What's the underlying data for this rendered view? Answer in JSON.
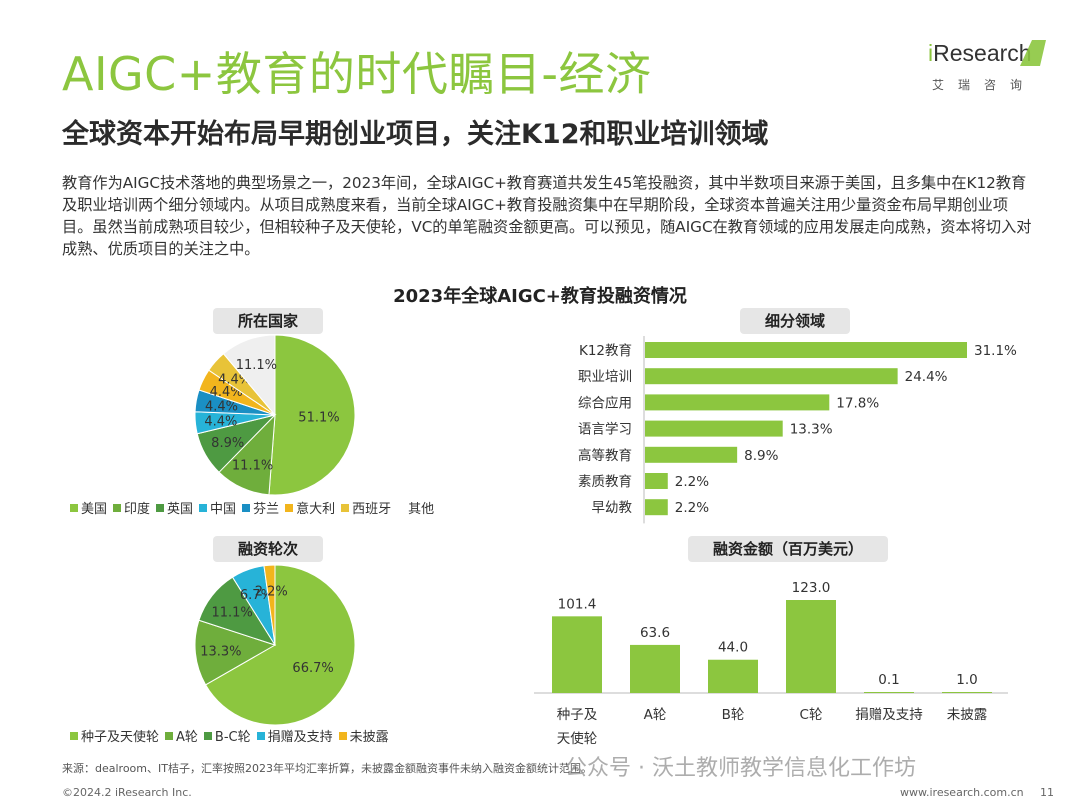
{
  "header": {
    "title": "AIGC+教育的时代瞩目-经济",
    "subtitle": "全球资本开始布局早期创业项目，关注K12和职业培训领域",
    "logo_word_prefix": "i",
    "logo_word_rest": "Research",
    "logo_cn": "艾瑞咨询"
  },
  "intro": "教育作为AIGC技术落地的典型场景之一，2023年间，全球AIGC+教育赛道共发生45笔投融资，其中半数项目来源于美国，且多集中在K12教育及职业培训两个细分领域内。从项目成熟度来看，当前全球AIGC+教育投融资集中在早期阶段，全球资本普遍关注用少量资金布局早期创业项目。虽然当前成熟项目较少，但相较种子及天使轮，VC的单笔融资金额更高。可以预见，随AIGC在教育领域的应用发展走向成熟，资本将切入对成熟、优质项目的关注之中。",
  "chart_title": "2023年全球AIGC+教育投融资情况",
  "colors": {
    "accent": "#8cc63f",
    "bar": "#8cc63f",
    "grey_label": "#e6e6e6"
  },
  "chart_data": [
    {
      "type": "pie",
      "title": "所在国家",
      "unit": "%",
      "categories": [
        "美国",
        "印度",
        "英国",
        "中国",
        "芬兰",
        "意大利",
        "西班牙",
        "其他"
      ],
      "values": [
        51.1,
        11.1,
        8.9,
        4.4,
        4.4,
        4.4,
        4.4,
        11.1
      ],
      "labels": [
        "51.1%",
        "11.1%",
        "8.9%",
        "4.4%",
        "4.4%",
        "4.4%",
        "4.4%",
        "11.1%"
      ],
      "colors": [
        "#8cc63f",
        "#6fae3c",
        "#4e9a42",
        "#27b3d8",
        "#1a8fc4",
        "#f2b51d",
        "#e8c338",
        "#efefef"
      ],
      "legend_position": "bottom"
    },
    {
      "type": "bar",
      "orientation": "horizontal",
      "title": "细分领域",
      "unit": "%",
      "categories": [
        "K12教育",
        "职业培训",
        "综合应用",
        "语言学习",
        "高等教育",
        "素质教育",
        "早幼教"
      ],
      "values": [
        31.1,
        24.4,
        17.8,
        13.3,
        8.9,
        2.2,
        2.2
      ],
      "labels": [
        "31.1%",
        "24.4%",
        "17.8%",
        "13.3%",
        "8.9%",
        "2.2%",
        "2.2%"
      ],
      "xlim": [
        0,
        31.1
      ]
    },
    {
      "type": "pie",
      "title": "融资轮次",
      "unit": "%",
      "categories": [
        "种子及天使轮",
        "A轮",
        "B-C轮",
        "捐赠及支持",
        "未披露"
      ],
      "values": [
        66.7,
        13.3,
        11.1,
        6.7,
        2.2
      ],
      "labels": [
        "66.7%",
        "13.3%",
        "11.1%",
        "6.7%",
        "2.2%"
      ],
      "colors": [
        "#8cc63f",
        "#6fae3c",
        "#4e9a42",
        "#27b3d8",
        "#f2b51d"
      ],
      "legend_position": "bottom"
    },
    {
      "type": "bar",
      "orientation": "vertical",
      "title": "融资金额（百万美元）",
      "categories": [
        "种子及天使轮",
        "A轮",
        "B轮",
        "C轮",
        "捐赠及支持",
        "未披露"
      ],
      "category_lines": [
        [
          "种子及",
          "天使轮"
        ],
        [
          "A轮"
        ],
        [
          "B轮"
        ],
        [
          "C轮"
        ],
        [
          "捐赠及支持"
        ],
        [
          "未披露"
        ]
      ],
      "values": [
        101.4,
        63.6,
        44.0,
        123.0,
        0.1,
        1.0
      ],
      "labels": [
        "101.4",
        "63.6",
        "44.0",
        "123.0",
        "0.1",
        "1.0"
      ],
      "ylim": [
        0,
        123.0
      ]
    }
  ],
  "pie1_legend": [
    {
      "label": "美国",
      "color": "#8cc63f"
    },
    {
      "label": "印度",
      "color": "#6fae3c"
    },
    {
      "label": "英国",
      "color": "#4e9a42"
    },
    {
      "label": "中国",
      "color": "#27b3d8"
    },
    {
      "label": "芬兰",
      "color": "#1a8fc4"
    },
    {
      "label": "意大利",
      "color": "#f2b51d"
    },
    {
      "label": "西班牙",
      "color": "#e8c338"
    },
    {
      "label": "其他",
      "color": "#ffffff"
    }
  ],
  "pie2_legend": [
    {
      "label": "种子及天使轮",
      "color": "#8cc63f"
    },
    {
      "label": "A轮",
      "color": "#6fae3c"
    },
    {
      "label": "B-C轮",
      "color": "#4e9a42"
    },
    {
      "label": "捐赠及支持",
      "color": "#27b3d8"
    },
    {
      "label": "未披露",
      "color": "#f2b51d"
    }
  ],
  "footer": {
    "source": "来源：dealroom、IT桔子，汇率按照2023年平均汇率折算，未披露金额融资事件未纳入融资金额统计范围。",
    "copyright": "©2024.2 iResearch Inc.",
    "url": "www.iresearch.com.cn",
    "page": "11",
    "watermark": "公众号 · 沃土教师教学信息化工作坊"
  }
}
